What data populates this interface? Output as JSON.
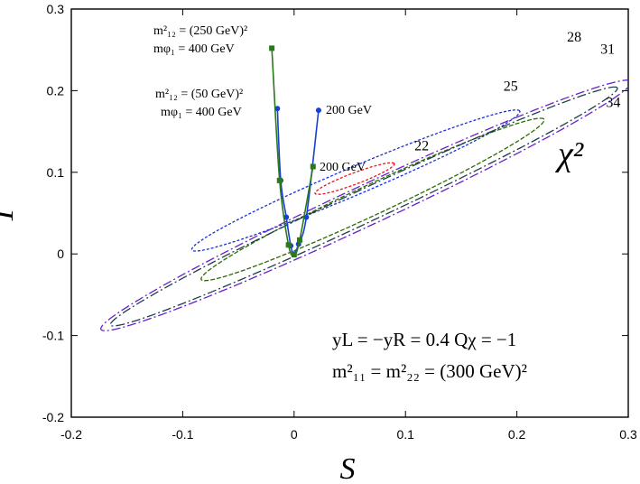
{
  "chart_data": {
    "type": "line",
    "title": "",
    "xlabel": "S",
    "ylabel": "T",
    "xlim": [
      -0.2,
      0.3
    ],
    "ylim": [
      -0.2,
      0.3
    ],
    "xticks": [
      "-0.2",
      "-0.1",
      "0",
      "0.1",
      "0.2",
      "0.3"
    ],
    "yticks": [
      "-0.2",
      "-0.1",
      "0",
      "0.1",
      "0.2",
      "0.3"
    ],
    "xtick_values": [
      -0.2,
      -0.1,
      0,
      0.1,
      0.2,
      0.3
    ],
    "ytick_values": [
      -0.2,
      -0.1,
      0,
      0.1,
      0.2,
      0.3
    ],
    "chi2_symbol": "χ²",
    "contours": [
      {
        "level": "22",
        "color": "#e8141e",
        "dash": "3,2",
        "center": [
          0.05,
          0.09
        ],
        "half_width": [
          -0.035,
          -0.038,
          0.045,
          0.032
        ],
        "slope": 0.52,
        "label_pos": [
          0.108,
          0.127
        ]
      },
      {
        "level": "25",
        "color": "#1a2fd6",
        "dash": "3,2",
        "center": [
          0.09,
          0.11
        ],
        "half_width": [
          -0.21,
          -0.1,
          0.13,
          0.1
        ],
        "slope": 0.58,
        "label_pos": [
          0.188,
          0.2
        ]
      },
      {
        "level": "28",
        "color": "#2f6a00",
        "dash": "5,2",
        "center": [
          0.06,
          0.06
        ],
        "half_width": [
          -0.17,
          -0.12,
          0.195,
          0.11
        ],
        "slope": 0.64,
        "label_pos": [
          0.245,
          0.26
        ]
      },
      {
        "level": "31",
        "color": "#1a3f4c",
        "dash": "10,3,2,3",
        "center": [
          0.05,
          0.05
        ],
        "half_width": [
          -0.255,
          -0.18,
          0.285,
          0.12
        ],
        "slope": 0.64,
        "label_pos": [
          0.275,
          0.245
        ]
      },
      {
        "level": "34",
        "color": "#6a1fcf",
        "dash": "10,3,2,3",
        "center": [
          0.05,
          0.05
        ],
        "half_width": [
          -0.265,
          -0.22,
          0.3,
          0.15
        ],
        "slope": 0.64,
        "label_pos": [
          0.28,
          0.18
        ]
      }
    ],
    "series": [
      {
        "name": "m12^2 = (50 GeV)^2, m_phi1 = 400 GeV",
        "color": "#1a3fd6",
        "marker": "circle",
        "x": [
          -0.015,
          -0.012,
          -0.007,
          -0.003,
          0.0,
          0.004,
          0.011,
          0.022
        ],
        "y": [
          0.178,
          0.09,
          0.045,
          0.01,
          0.0,
          0.012,
          0.045,
          0.176
        ]
      },
      {
        "name": "m12^2 = (250 GeV)^2, m_phi1 = 400 GeV",
        "color": "#2a7a1a",
        "marker": "square",
        "x": [
          -0.02,
          -0.013,
          -0.005,
          0.0,
          0.005,
          0.017
        ],
        "y": [
          0.252,
          0.09,
          0.011,
          -0.001,
          0.017,
          0.107
        ]
      }
    ],
    "annotations": {
      "green_top_line1": "m²₁₂ = (250 GeV)²",
      "green_top_line2": "mφ₁ = 400 GeV",
      "blue_top_line1": "m²₁₂ = (50 GeV)²",
      "blue_top_line2": "mφ₁ = 400 GeV",
      "blue_end": "200 GeV",
      "green_end": "200 GeV",
      "params_line1": "yL = −yR = 0.4    Qχ = −1",
      "params_line2": "m²₁₁ = m²₂₂ = (300 GeV)²"
    }
  }
}
